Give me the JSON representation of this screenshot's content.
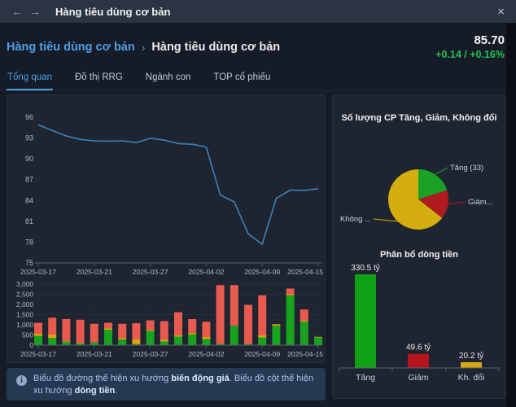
{
  "topbar": {
    "title": "Hàng tiêu dùng cơ bản",
    "icons": {
      "back": "←",
      "forward": "→",
      "close": "×",
      "info": "i"
    }
  },
  "breadcrumb": {
    "parent": "Hàng tiêu dùng cơ bản",
    "separator": "›",
    "current": "Hàng tiêu dùng cơ bản"
  },
  "quote": {
    "price": "85.70",
    "change": "+0.14 / +0.16%"
  },
  "tabs": [
    {
      "label": "Tổng quan",
      "active": true
    },
    {
      "label": "Đồ thị RRG",
      "active": false
    },
    {
      "label": "Ngành con",
      "active": false
    },
    {
      "label": "TOP cổ phiếu",
      "active": false
    }
  ],
  "colors": {
    "accent_blue": "#4f9fe6",
    "positive_green": "#25c152",
    "line_blue": "#3f81ba",
    "bar_up_green": "#18a220",
    "bar_unchanged_yellow": "#d8a60f",
    "bar_down_red": "#e85a4e",
    "pie_up_green": "#1ba226",
    "pie_down_red": "#b01b20",
    "pie_unchanged_yellow": "#d4ad0e"
  },
  "info": {
    "seg1": "Biểu đồ đường thể hiện xu hướng ",
    "seg2": "biến động giá",
    "seg3": ". Biểu đồ cột thể hiện xu hướng ",
    "seg4": "dòng tiền",
    "seg5": "."
  },
  "chart_data": [
    {
      "name": "price-trend",
      "type": "line",
      "x": [
        "2025-03-17",
        "2025-03-18",
        "2025-03-19",
        "2025-03-20",
        "2025-03-21",
        "2025-03-24",
        "2025-03-25",
        "2025-03-26",
        "2025-03-27",
        "2025-03-28",
        "2025-03-31",
        "2025-04-01",
        "2025-04-02",
        "2025-04-03",
        "2025-04-04",
        "2025-04-08",
        "2025-04-09",
        "2025-04-10",
        "2025-04-11",
        "2025-04-14",
        "2025-04-15"
      ],
      "values": [
        94.9,
        94.1,
        93.3,
        92.8,
        92.6,
        92.55,
        92.6,
        92.35,
        92.95,
        92.7,
        92.2,
        92.1,
        91.7,
        84.8,
        83.8,
        79.2,
        77.7,
        84.3,
        85.5,
        85.45,
        85.7
      ],
      "ylim": [
        75,
        96
      ],
      "yticks": [
        96,
        93,
        90,
        87,
        84,
        81,
        78,
        75
      ],
      "xtick_indices": [
        0,
        4,
        8,
        12,
        16,
        20
      ],
      "line_color": "#3f81ba",
      "grid": true,
      "legend": "none"
    },
    {
      "name": "money-flow-daily",
      "type": "bar",
      "stacked": true,
      "x": [
        "2025-03-17",
        "2025-03-18",
        "2025-03-19",
        "2025-03-20",
        "2025-03-21",
        "2025-03-24",
        "2025-03-25",
        "2025-03-26",
        "2025-03-27",
        "2025-03-28",
        "2025-03-31",
        "2025-04-01",
        "2025-04-02",
        "2025-04-03",
        "2025-04-04",
        "2025-04-08",
        "2025-04-09",
        "2025-04-10",
        "2025-04-11",
        "2025-04-14",
        "2025-04-15"
      ],
      "series": [
        {
          "name": "Tăng",
          "color": "#18a220",
          "values": [
            450,
            350,
            170,
            80,
            130,
            760,
            280,
            50,
            700,
            180,
            420,
            530,
            300,
            60,
            950,
            60,
            380,
            950,
            2450,
            1150,
            380
          ]
        },
        {
          "name": "Không đổi",
          "color": "#d8a60f",
          "values": [
            120,
            170,
            30,
            30,
            20,
            60,
            60,
            230,
            40,
            80,
            60,
            80,
            100,
            0,
            0,
            0,
            100,
            80,
            50,
            50,
            30
          ]
        },
        {
          "name": "Giảm",
          "color": "#e85a4e",
          "values": [
            530,
            830,
            1080,
            1140,
            900,
            280,
            710,
            800,
            480,
            920,
            1140,
            670,
            750,
            2890,
            2000,
            1920,
            1970,
            0,
            280,
            550,
            0
          ]
        }
      ],
      "ylim": [
        0,
        3000
      ],
      "yticks": [
        0,
        500,
        1000,
        1500,
        2000,
        2500,
        3000
      ],
      "xtick_indices": [
        0,
        4,
        8,
        12,
        16,
        20
      ],
      "grid": true,
      "legend": "none"
    },
    {
      "name": "advance-decline-pie",
      "type": "pie",
      "title": "Số lượng CP Tăng, Giảm, Không đổi",
      "slices": [
        {
          "label": "Tăng (33)",
          "percent": 20,
          "color": "#1ba226"
        },
        {
          "label": "Giảm...",
          "percent": 15.5,
          "color": "#b01b20"
        },
        {
          "label": "Không ...",
          "percent": 64.5,
          "color": "#d4ad0e"
        }
      ]
    },
    {
      "name": "money-flow-distribution",
      "type": "bar",
      "title": "Phân bổ dòng tiền",
      "categories": [
        "Tăng",
        "Giảm",
        "Kh. đổi"
      ],
      "values": [
        330.5,
        49.6,
        20.2
      ],
      "value_labels": [
        "330.5 tỷ",
        "49.6 tỷ",
        "20.2 tỷ"
      ],
      "colors": [
        "#0fa215",
        "#b5161d",
        "#d4a90e"
      ],
      "ylim": [
        0,
        360
      ],
      "legend": "none"
    }
  ]
}
